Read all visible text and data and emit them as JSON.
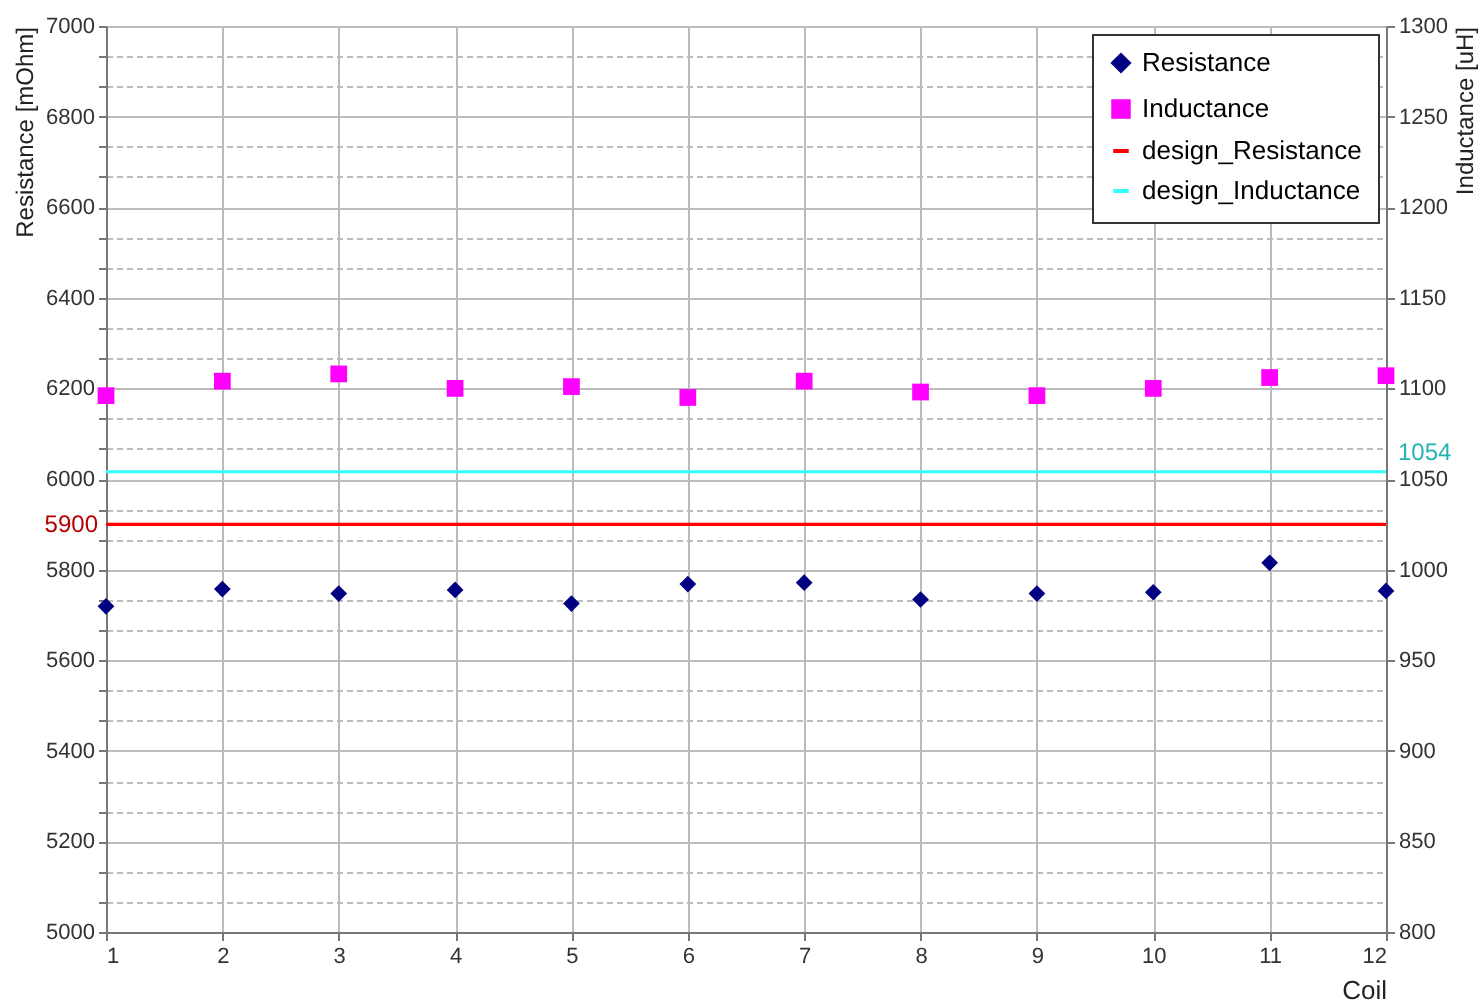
{
  "chart_data": {
    "type": "scatter",
    "xlabel": "Coil",
    "ylabel": "Resistance [mOhm]",
    "y2label": "Inductance [uH]",
    "x": [
      1,
      2,
      3,
      4,
      5,
      6,
      7,
      8,
      9,
      10,
      11,
      12
    ],
    "xlim": [
      1,
      12
    ],
    "xticks": [
      1,
      2,
      3,
      4,
      5,
      6,
      7,
      8,
      9,
      10,
      11,
      12
    ],
    "ylim": [
      5000,
      7000
    ],
    "yticks": [
      5000,
      {
        "value": 5066.7,
        "label": null
      },
      {
        "value": 5133.3,
        "label": null
      },
      5200,
      {
        "value": 5266.7,
        "label": null
      },
      {
        "value": 5333.3,
        "label": null
      },
      5400,
      {
        "value": 5466.7,
        "label": null
      },
      {
        "value": 5533.3,
        "label": null
      },
      5600,
      {
        "value": 5666.7,
        "label": null
      },
      {
        "value": 5733.3,
        "label": null
      },
      5800,
      {
        "value": 5866.7,
        "label": null
      },
      {
        "value": 5933.3,
        "label": null
      },
      6000,
      {
        "value": 6066.7,
        "label": null
      },
      {
        "value": 6133.3,
        "label": null
      },
      6200,
      {
        "value": 6266.7,
        "label": null
      },
      {
        "value": 6333.3,
        "label": null
      },
      6400,
      {
        "value": 6466.7,
        "label": null
      },
      {
        "value": 6533.3,
        "label": null
      },
      6600,
      {
        "value": 6666.7,
        "label": null
      },
      {
        "value": 6733.3,
        "label": null
      },
      6800,
      {
        "value": 6866.7,
        "label": null
      },
      {
        "value": 6933.3,
        "label": null
      },
      7000
    ],
    "y2lim": [
      800,
      1300
    ],
    "y2ticks": [
      800,
      850,
      900,
      950,
      1000,
      1050,
      1100,
      1150,
      1200,
      1250,
      1300
    ],
    "grid": true,
    "legend": "top right",
    "series": [
      {
        "name": "Resistance",
        "color": "#000080",
        "marker": "diamond",
        "values": [
          5719,
          5757,
          5747,
          5755,
          5725,
          5768,
          5771,
          5734,
          5747,
          5750,
          5815,
          5753
        ]
      },
      {
        "name": "Inductance",
        "color": "#ff00ff",
        "marker": "square",
        "axis": "y2",
        "values": [
          1096,
          1104,
          1108,
          1100,
          1101,
          1095,
          1104,
          1098,
          1096,
          1100,
          1106,
          1107
        ]
      },
      {
        "name": "design_Resistance",
        "type": "line",
        "color": "#ff0000",
        "marker": "none",
        "values": [
          5900,
          5900,
          5900,
          5900,
          5900,
          5900,
          5900,
          5900,
          5900,
          5900,
          5900,
          5900
        ],
        "value_labels": [
          "5900",
          null,
          null,
          null,
          null,
          null,
          null,
          null,
          null,
          null,
          null,
          null
        ]
      },
      {
        "name": "design_Inductance",
        "type": "line",
        "color": "#33ffff",
        "marker": "none",
        "axis": "y2",
        "values": [
          1054,
          1054,
          1054,
          1054,
          1054,
          1054,
          1054,
          1054,
          1054,
          1054,
          1054,
          1054
        ],
        "value_labels": [
          null,
          null,
          null,
          null,
          null,
          null,
          null,
          null,
          null,
          null,
          null,
          "1054"
        ]
      }
    ]
  }
}
